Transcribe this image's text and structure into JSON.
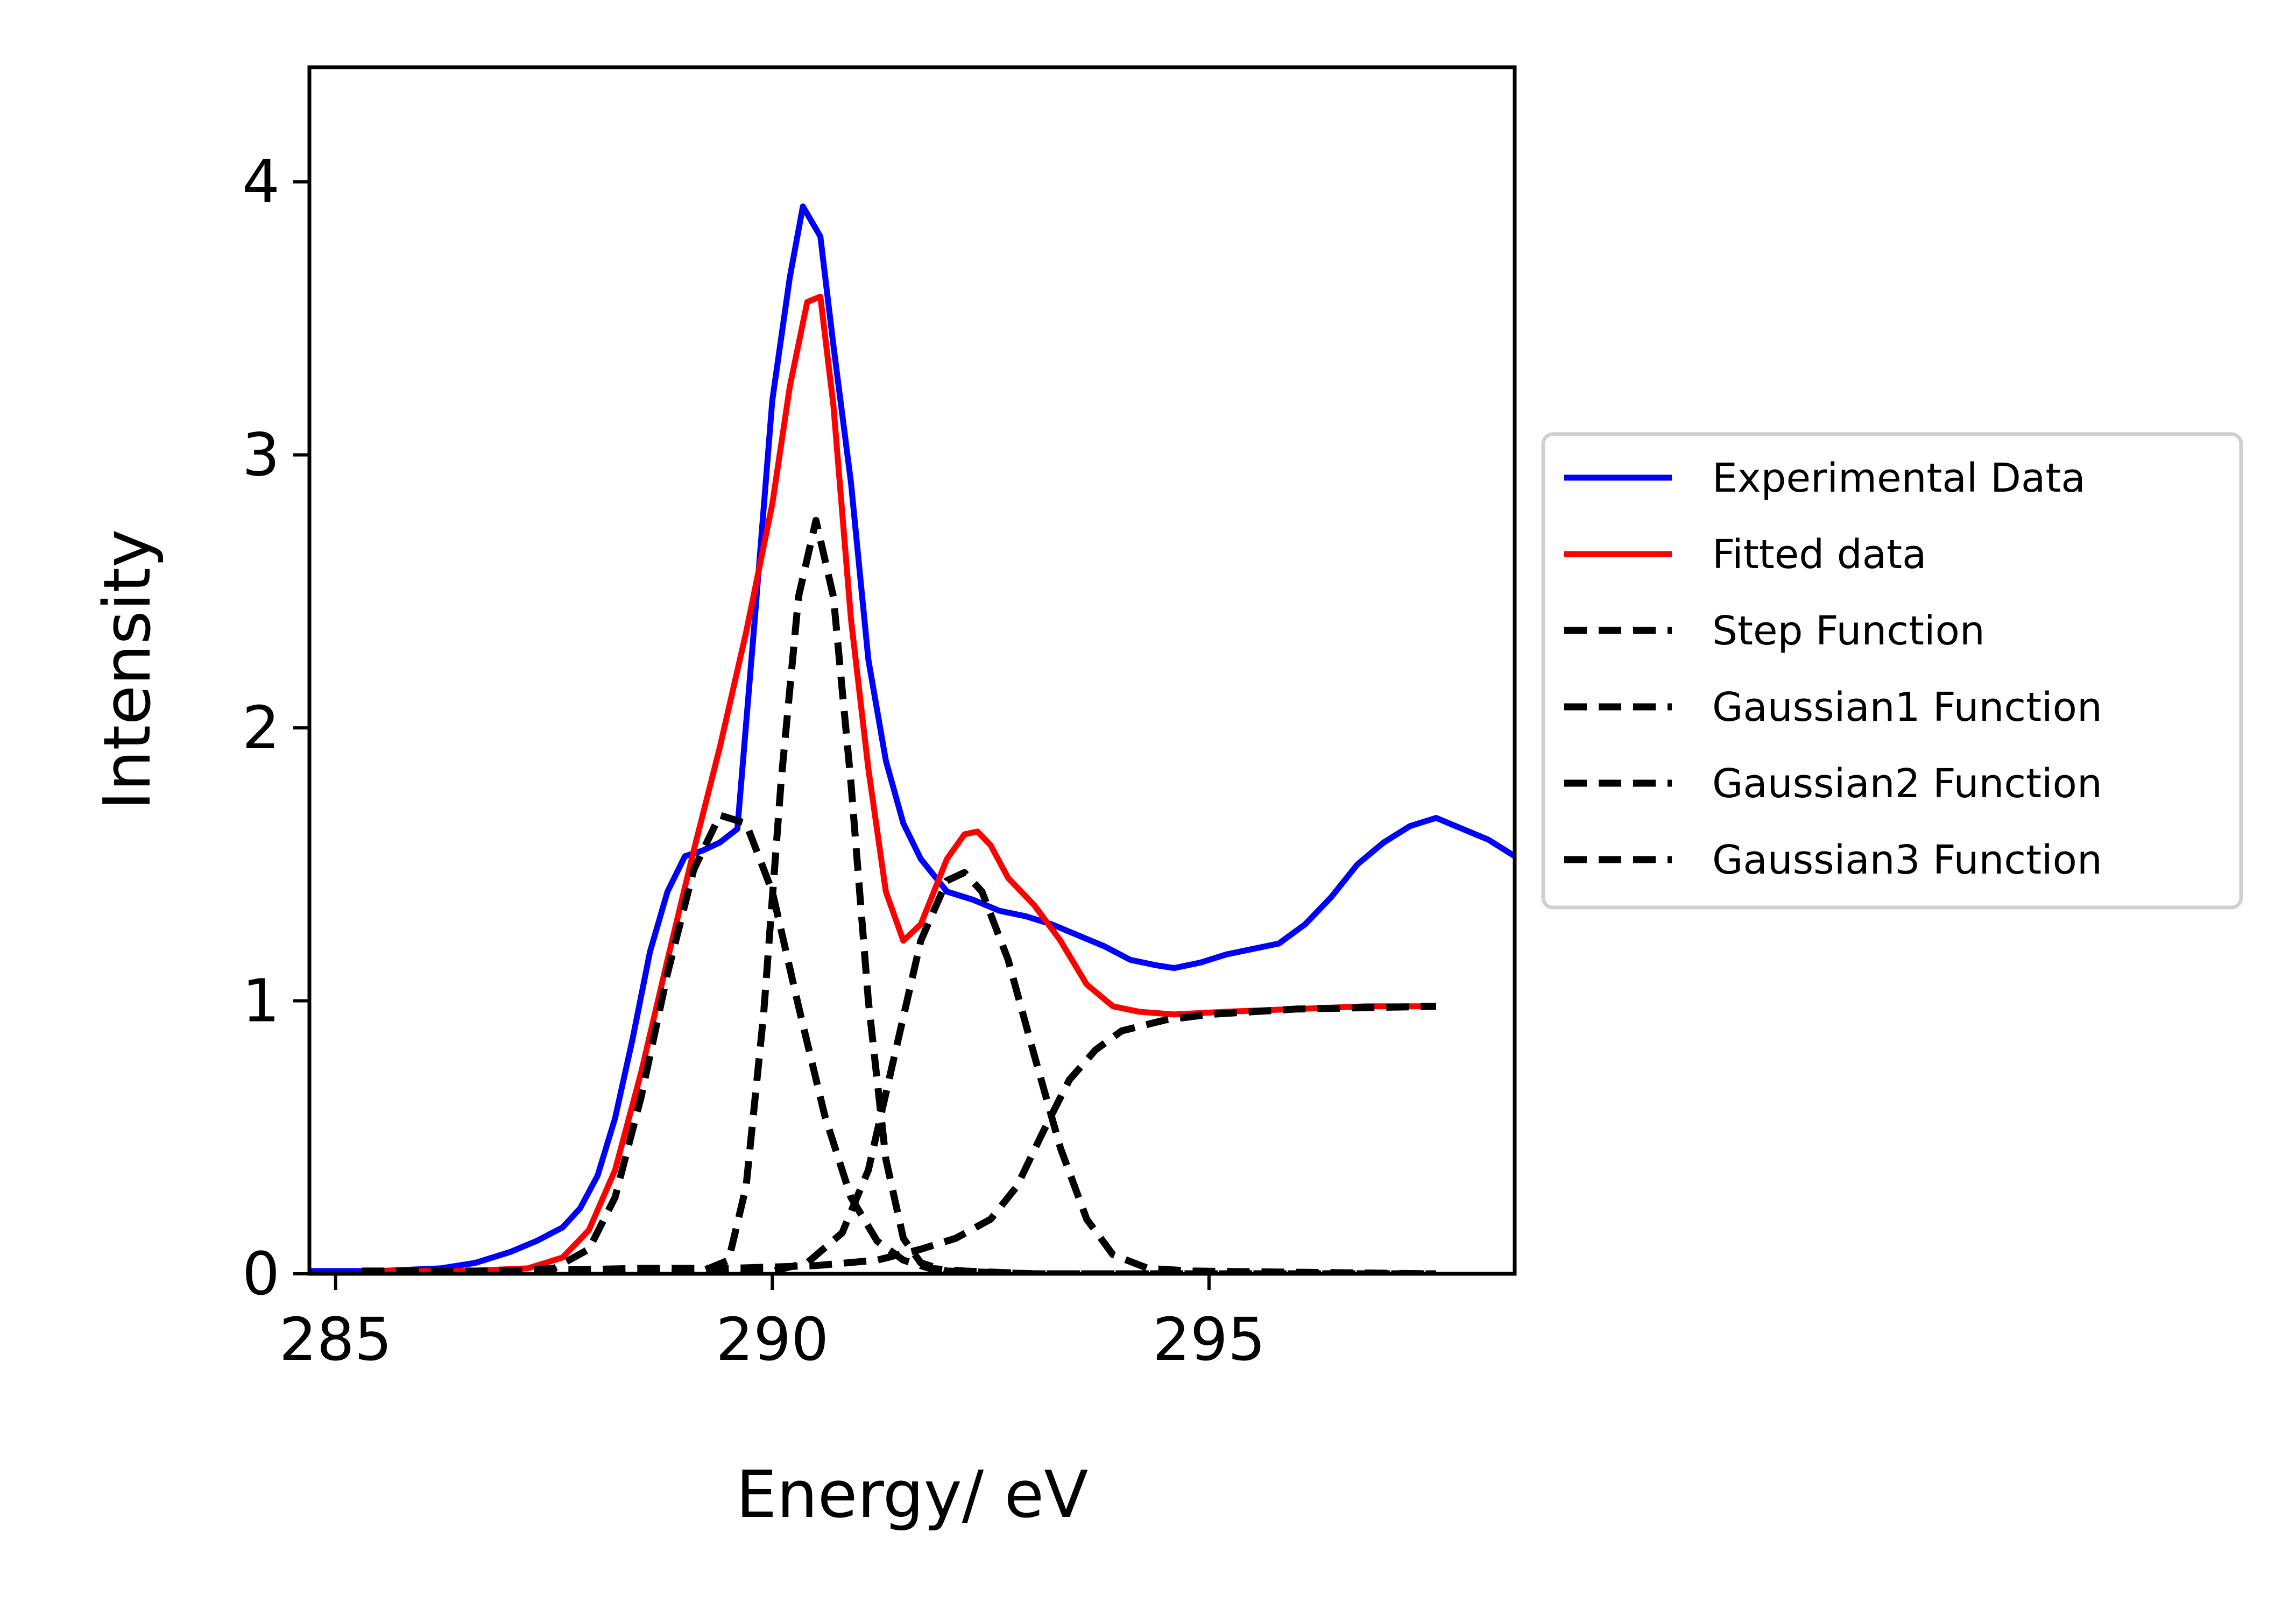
{
  "chart_data": {
    "type": "line",
    "xlabel": "Energy/ eV",
    "ylabel": "Intensity",
    "xlim": [
      284.7,
      298.5
    ],
    "ylim": [
      0,
      4.42
    ],
    "xticks": [
      285,
      290,
      295
    ],
    "yticks": [
      0,
      1,
      2,
      3,
      4
    ],
    "grid": false,
    "legend_position": "right, outside plot",
    "series": [
      {
        "name": "Experimental Data",
        "color": "#0000ff",
        "style": "solid",
        "x": [
          284.7,
          285.5,
          286.2,
          286.6,
          287.0,
          287.3,
          287.6,
          287.8,
          288.0,
          288.2,
          288.4,
          288.6,
          288.8,
          289.0,
          289.2,
          289.4,
          289.6,
          289.8,
          290.0,
          290.2,
          290.35,
          290.55,
          290.7,
          290.9,
          291.1,
          291.3,
          291.5,
          291.7,
          292.0,
          292.3,
          292.6,
          292.9,
          293.2,
          293.5,
          293.8,
          294.1,
          294.4,
          294.6,
          294.9,
          295.2,
          295.5,
          295.8,
          296.1,
          296.4,
          296.7,
          297.0,
          297.3,
          297.6,
          297.9,
          298.2,
          298.5
        ],
        "y": [
          0.01,
          0.01,
          0.02,
          0.04,
          0.08,
          0.12,
          0.17,
          0.24,
          0.36,
          0.57,
          0.86,
          1.18,
          1.4,
          1.53,
          1.55,
          1.58,
          1.63,
          2.4,
          3.2,
          3.65,
          3.91,
          3.8,
          3.4,
          2.9,
          2.25,
          1.88,
          1.65,
          1.52,
          1.4,
          1.37,
          1.33,
          1.31,
          1.28,
          1.24,
          1.2,
          1.15,
          1.13,
          1.12,
          1.14,
          1.17,
          1.19,
          1.21,
          1.28,
          1.38,
          1.5,
          1.58,
          1.64,
          1.67,
          1.63,
          1.59,
          1.53
        ]
      },
      {
        "name": "Fitted data",
        "color": "#ff0000",
        "style": "solid",
        "x": [
          285.3,
          286.5,
          287.2,
          287.6,
          287.9,
          288.2,
          288.5,
          288.8,
          289.1,
          289.4,
          289.7,
          290.0,
          290.2,
          290.4,
          290.55,
          290.7,
          290.9,
          291.1,
          291.3,
          291.5,
          291.7,
          292.0,
          292.2,
          292.35,
          292.5,
          292.7,
          293.0,
          293.3,
          293.6,
          293.9,
          294.2,
          294.6,
          295.2,
          296.0,
          296.8,
          297.6
        ],
        "y": [
          0.01,
          0.01,
          0.02,
          0.06,
          0.16,
          0.38,
          0.74,
          1.15,
          1.55,
          1.93,
          2.35,
          2.82,
          3.25,
          3.56,
          3.58,
          3.18,
          2.4,
          1.85,
          1.4,
          1.22,
          1.28,
          1.52,
          1.61,
          1.62,
          1.57,
          1.45,
          1.35,
          1.22,
          1.06,
          0.98,
          0.96,
          0.95,
          0.96,
          0.97,
          0.98,
          0.98
        ]
      },
      {
        "name": "Step Function",
        "color": "#000000",
        "style": "dashed",
        "x": [
          285.3,
          287.0,
          288.5,
          289.5,
          290.5,
          291.2,
          291.7,
          292.1,
          292.5,
          292.8,
          293.1,
          293.4,
          293.7,
          294.0,
          294.5,
          295.0,
          296.0,
          297.6
        ],
        "y": [
          0.01,
          0.01,
          0.02,
          0.02,
          0.03,
          0.05,
          0.09,
          0.13,
          0.2,
          0.32,
          0.52,
          0.71,
          0.82,
          0.89,
          0.93,
          0.95,
          0.97,
          0.98
        ]
      },
      {
        "name": "Gaussian1 Function",
        "color": "#000000",
        "style": "dashed",
        "x": [
          285.3,
          287.0,
          287.5,
          287.9,
          288.2,
          288.5,
          288.8,
          289.1,
          289.4,
          289.7,
          290.0,
          290.3,
          290.6,
          290.9,
          291.2,
          291.5,
          291.8,
          292.2,
          293.0,
          294.5,
          297.6
        ],
        "y": [
          0.0,
          0.01,
          0.02,
          0.09,
          0.28,
          0.65,
          1.1,
          1.48,
          1.68,
          1.65,
          1.4,
          0.98,
          0.58,
          0.28,
          0.12,
          0.05,
          0.02,
          0.01,
          0.0,
          0.0,
          0.0
        ]
      },
      {
        "name": "Gaussian2 Function",
        "color": "#000000",
        "style": "dashed",
        "x": [
          285.3,
          288.5,
          289.2,
          289.5,
          289.7,
          289.9,
          290.1,
          290.3,
          290.5,
          290.7,
          290.9,
          291.1,
          291.3,
          291.5,
          291.7,
          292.0,
          293.0,
          297.6
        ],
        "y": [
          0.0,
          0.0,
          0.01,
          0.05,
          0.32,
          0.95,
          1.8,
          2.48,
          2.76,
          2.48,
          1.8,
          1.0,
          0.42,
          0.13,
          0.04,
          0.01,
          0.0,
          0.0
        ]
      },
      {
        "name": "Gaussian3 Function",
        "color": "#000000",
        "style": "dashed",
        "x": [
          285.3,
          289.5,
          290.0,
          290.4,
          290.8,
          291.1,
          291.4,
          291.7,
          292.0,
          292.2,
          292.4,
          292.7,
          293.0,
          293.3,
          293.6,
          293.9,
          294.3,
          294.8,
          297.6
        ],
        "y": [
          0.0,
          0.0,
          0.01,
          0.04,
          0.15,
          0.38,
          0.8,
          1.22,
          1.44,
          1.47,
          1.4,
          1.15,
          0.8,
          0.46,
          0.2,
          0.07,
          0.02,
          0.01,
          0.0
        ]
      }
    ]
  }
}
